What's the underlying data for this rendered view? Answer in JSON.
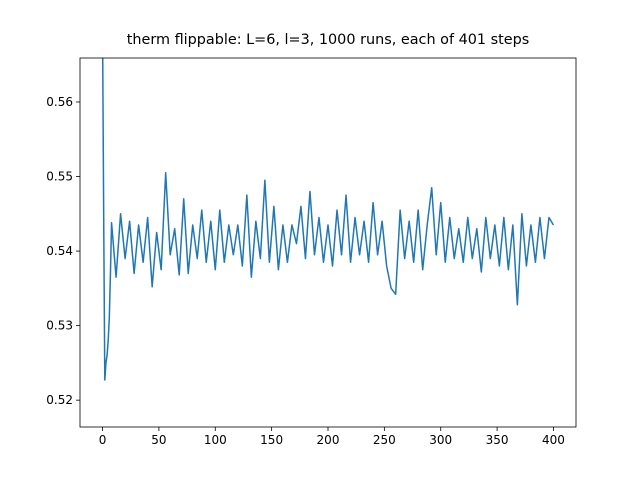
{
  "chart_data": {
    "type": "line",
    "title": "therm flippable: L=6, l=3, 1000 runs, each of 401 steps",
    "x": [
      0,
      1,
      2,
      3,
      4,
      5,
      6,
      7,
      8,
      12,
      16,
      20,
      24,
      28,
      32,
      36,
      40,
      44,
      48,
      52,
      56,
      60,
      64,
      68,
      72,
      76,
      80,
      84,
      88,
      92,
      96,
      100,
      104,
      108,
      112,
      116,
      120,
      124,
      128,
      132,
      136,
      140,
      144,
      148,
      152,
      156,
      160,
      164,
      168,
      172,
      176,
      180,
      184,
      188,
      192,
      196,
      200,
      204,
      208,
      212,
      216,
      220,
      224,
      228,
      232,
      236,
      240,
      244,
      248,
      252,
      256,
      260,
      264,
      268,
      272,
      276,
      280,
      284,
      288,
      292,
      296,
      300,
      304,
      308,
      312,
      316,
      320,
      324,
      328,
      332,
      336,
      340,
      344,
      348,
      352,
      356,
      360,
      364,
      368,
      372,
      376,
      380,
      384,
      388,
      392,
      396,
      400
    ],
    "series": [
      {
        "color": "#1f77b4",
        "values": [
          0.57,
          0.545,
          0.5227,
          0.525,
          0.526,
          0.528,
          0.531,
          0.537,
          0.5438,
          0.5365,
          0.545,
          0.539,
          0.544,
          0.537,
          0.5435,
          0.5385,
          0.5445,
          0.5352,
          0.5425,
          0.5375,
          0.5505,
          0.5395,
          0.543,
          0.5368,
          0.547,
          0.537,
          0.5435,
          0.539,
          0.5455,
          0.5385,
          0.544,
          0.5375,
          0.5455,
          0.5385,
          0.5435,
          0.5395,
          0.5435,
          0.538,
          0.5475,
          0.5365,
          0.544,
          0.539,
          0.5495,
          0.5385,
          0.546,
          0.5375,
          0.5435,
          0.5385,
          0.5435,
          0.541,
          0.546,
          0.539,
          0.548,
          0.5395,
          0.5445,
          0.5385,
          0.5435,
          0.538,
          0.5455,
          0.5395,
          0.5475,
          0.5385,
          0.5445,
          0.5395,
          0.544,
          0.5385,
          0.5465,
          0.5395,
          0.544,
          0.538,
          0.535,
          0.5342,
          0.5455,
          0.539,
          0.544,
          0.5385,
          0.5455,
          0.5375,
          0.5435,
          0.5485,
          0.5395,
          0.5465,
          0.5385,
          0.5445,
          0.539,
          0.543,
          0.5385,
          0.5445,
          0.539,
          0.543,
          0.5372,
          0.5445,
          0.539,
          0.5435,
          0.538,
          0.5445,
          0.5375,
          0.5435,
          0.5328,
          0.545,
          0.538,
          0.5435,
          0.5385,
          0.5445,
          0.539,
          0.5445,
          0.5435
        ]
      }
    ],
    "xlim": [
      -20,
      420
    ],
    "ylim": [
      0.5164,
      0.5659
    ],
    "xticks": [
      0,
      50,
      100,
      150,
      200,
      250,
      300,
      350,
      400
    ],
    "yticks": [
      0.52,
      0.53,
      0.54,
      0.55,
      0.56
    ]
  }
}
